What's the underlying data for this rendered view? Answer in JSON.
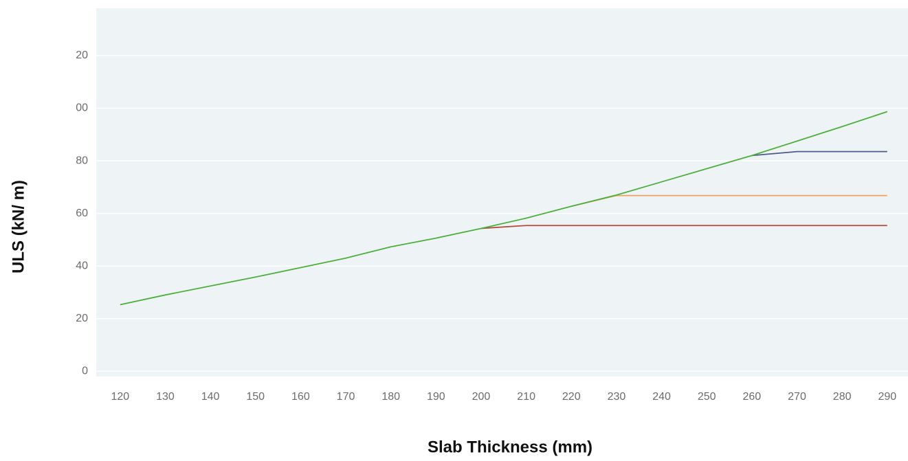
{
  "chart_data": {
    "type": "line",
    "x_label": "Slab Thickness (mm)",
    "y_label": "ULS (kN/ m)",
    "x": [
      120,
      130,
      140,
      150,
      160,
      170,
      180,
      190,
      200,
      210,
      220,
      230,
      240,
      250,
      260,
      270,
      280,
      290
    ],
    "xlim": [
      114.7,
      294.6
    ],
    "xticks": [
      120,
      130,
      140,
      150,
      160,
      170,
      180,
      190,
      200,
      210,
      220,
      230,
      240,
      250,
      260,
      270,
      280,
      290
    ],
    "ylim": [
      -2,
      138
    ],
    "yticks": [
      0,
      20,
      40,
      60,
      80,
      {
        "value": 100,
        "label": "00"
      },
      {
        "value": 120,
        "label": "20"
      }
    ],
    "grid": true,
    "series": [
      {
        "color": "#b44a3a",
        "values": [
          null,
          null,
          null,
          null,
          null,
          null,
          null,
          null,
          54.3,
          55.4,
          55.4,
          55.4,
          55.4,
          55.4,
          55.4,
          55.4,
          55.4,
          55.4
        ]
      },
      {
        "color": "#f0a060",
        "values": [
          null,
          null,
          null,
          null,
          null,
          null,
          null,
          null,
          null,
          null,
          62.7,
          66.8,
          66.8,
          66.8,
          66.8,
          66.8,
          66.8,
          66.8
        ]
      },
      {
        "color": "#4a5a8c",
        "values": [
          null,
          null,
          null,
          null,
          null,
          null,
          null,
          null,
          null,
          null,
          null,
          null,
          null,
          null,
          82,
          83.5,
          83.5,
          83.5
        ]
      },
      {
        "color": "#4caf3c",
        "values": [
          25.3,
          29,
          32.4,
          35.8,
          39.4,
          43,
          47.3,
          50.6,
          54.3,
          58.2,
          62.7,
          67,
          72,
          77,
          82,
          87.5,
          93,
          98.7
        ]
      }
    ]
  }
}
